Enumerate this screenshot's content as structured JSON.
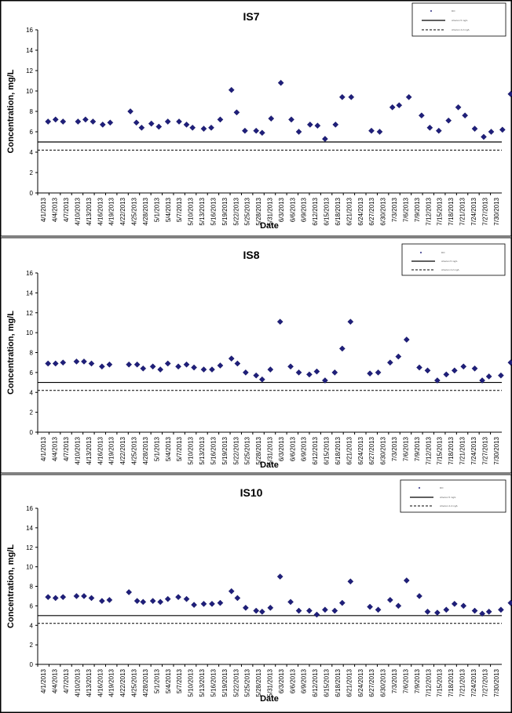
{
  "chart_data": [
    {
      "type": "scatter",
      "title": "IS7",
      "xlabel": "Date",
      "ylabel": "Concentration, mg/L",
      "ylim": [
        0,
        16
      ],
      "yticks": [
        "0",
        "2",
        "4",
        "6",
        "8",
        "10",
        "12",
        "14",
        "16"
      ],
      "categories": [
        "4/1/2013",
        "4/4/2013",
        "4/7/2013",
        "4/10/2013",
        "4/13/2013",
        "4/16/2013",
        "4/19/2013",
        "4/22/2013",
        "4/25/2013",
        "4/28/2013",
        "5/1/2013",
        "5/4/2013",
        "5/7/2013",
        "5/10/2013",
        "5/13/2013",
        "5/16/2013",
        "5/19/2013",
        "5/22/2013",
        "5/25/2013",
        "5/28/2013",
        "5/31/2013",
        "6/3/2013",
        "6/6/2013",
        "6/9/2013",
        "6/12/2013",
        "6/15/2013",
        "6/18/2013",
        "6/21/2013",
        "6/24/2013",
        "6/27/2013",
        "6/30/2013",
        "7/3/2013",
        "7/6/2013",
        "7/9/2013",
        "7/12/2013",
        "7/15/2013",
        "7/18/2013",
        "7/21/2013",
        "7/24/2013",
        "7/27/2013",
        "7/30/2013"
      ],
      "series": [
        {
          "values": [
            [
              0,
              7.0
            ],
            [
              1,
              7.2
            ],
            [
              2,
              7.0
            ],
            [
              4,
              7.0
            ],
            [
              5,
              7.2
            ],
            [
              6,
              7.0
            ],
            [
              7.3,
              6.7
            ],
            [
              8.3,
              6.9
            ],
            [
              11,
              8.0
            ],
            [
              11.8,
              6.9
            ],
            [
              12.5,
              6.4
            ],
            [
              13.8,
              6.8
            ],
            [
              14.8,
              6.5
            ],
            [
              16,
              7.0
            ],
            [
              17.5,
              7.0
            ],
            [
              18.5,
              6.7
            ],
            [
              19.3,
              6.4
            ],
            [
              20.8,
              6.3
            ],
            [
              21.8,
              6.4
            ],
            [
              23,
              7.2
            ],
            [
              24.5,
              10.1
            ],
            [
              25.2,
              7.9
            ],
            [
              26.3,
              6.1
            ],
            [
              27.8,
              6.1
            ],
            [
              28.6,
              5.9
            ],
            [
              29.8,
              7.3
            ],
            [
              31.1,
              10.8
            ],
            [
              32.5,
              7.2
            ],
            [
              33.5,
              6.0
            ],
            [
              35,
              6.7
            ],
            [
              36,
              6.6
            ],
            [
              37,
              5.3
            ],
            [
              38.4,
              6.7
            ],
            [
              39.3,
              9.4
            ],
            [
              40.5,
              9.4
            ],
            [
              43.2,
              6.1
            ],
            [
              44.3,
              6.0
            ],
            [
              46,
              8.4
            ],
            [
              46.9,
              8.6
            ],
            [
              48.2,
              9.4
            ],
            [
              49.9,
              7.6
            ],
            [
              51,
              6.4
            ],
            [
              52.2,
              6.1
            ],
            [
              53.5,
              7.1
            ],
            [
              54.8,
              8.4
            ],
            [
              55.7,
              7.6
            ],
            [
              57,
              6.3
            ],
            [
              58.2,
              5.5
            ],
            [
              59.2,
              6.0
            ],
            [
              60.7,
              6.2
            ],
            [
              61.8,
              9.7
            ]
          ]
        }
      ],
      "reference_lines": [
        5.0,
        4.2
      ],
      "legend": [
        "DO",
        "criterion 5 mg/L",
        "criterion 4.2 mg/L"
      ]
    },
    {
      "type": "scatter",
      "title": "IS8",
      "xlabel": "Date",
      "ylabel": "Concentration, mg/L",
      "ylim": [
        0,
        16
      ],
      "yticks": [
        "0",
        "2",
        "4",
        "6",
        "8",
        "10",
        "12",
        "14",
        "16"
      ],
      "categories": [
        "4/1/2013",
        "4/4/2013",
        "4/7/2013",
        "4/10/2013",
        "4/13/2013",
        "4/16/2013",
        "4/19/2013",
        "4/22/2013",
        "4/25/2013",
        "4/28/2013",
        "5/1/2013",
        "5/4/2013",
        "5/7/2013",
        "5/10/2013",
        "5/13/2013",
        "5/16/2013",
        "5/19/2013",
        "5/22/2013",
        "5/25/2013",
        "5/28/2013",
        "5/31/2013",
        "6/3/2013",
        "6/6/2013",
        "6/9/2013",
        "6/12/2013",
        "6/15/2013",
        "6/18/2013",
        "6/21/2013",
        "6/24/2013",
        "6/27/2013",
        "6/30/2013",
        "7/3/2013",
        "7/6/2013",
        "7/9/2013",
        "7/12/2013",
        "7/15/2013",
        "7/18/2013",
        "7/21/2013",
        "7/24/2013",
        "7/27/2013",
        "7/30/2013"
      ],
      "series": [
        {
          "values": [
            [
              0,
              6.9
            ],
            [
              1,
              6.9
            ],
            [
              2,
              7.0
            ],
            [
              3.8,
              7.1
            ],
            [
              4.8,
              7.1
            ],
            [
              5.8,
              6.9
            ],
            [
              7.2,
              6.6
            ],
            [
              8.2,
              6.8
            ],
            [
              10.8,
              6.8
            ],
            [
              11.9,
              6.8
            ],
            [
              12.7,
              6.4
            ],
            [
              14,
              6.6
            ],
            [
              15,
              6.3
            ],
            [
              16,
              6.9
            ],
            [
              17.4,
              6.6
            ],
            [
              18.5,
              6.8
            ],
            [
              19.5,
              6.5
            ],
            [
              20.8,
              6.3
            ],
            [
              21.9,
              6.3
            ],
            [
              23,
              6.7
            ],
            [
              24.5,
              7.4
            ],
            [
              25.3,
              6.9
            ],
            [
              26.4,
              6.0
            ],
            [
              27.8,
              5.7
            ],
            [
              28.6,
              5.3
            ],
            [
              29.7,
              6.3
            ],
            [
              31.0,
              11.1
            ],
            [
              32.4,
              6.6
            ],
            [
              33.5,
              6.0
            ],
            [
              34.9,
              5.8
            ],
            [
              35.9,
              6.1
            ],
            [
              37,
              5.2
            ],
            [
              38.3,
              6.0
            ],
            [
              39.3,
              8.4
            ],
            [
              40.4,
              11.1
            ],
            [
              43.0,
              5.9
            ],
            [
              44.1,
              6.0
            ],
            [
              45.7,
              7.0
            ],
            [
              46.8,
              7.6
            ],
            [
              47.9,
              9.3
            ],
            [
              49.6,
              6.5
            ],
            [
              50.7,
              6.2
            ],
            [
              52,
              5.2
            ],
            [
              53.2,
              5.8
            ],
            [
              54.3,
              6.2
            ],
            [
              55.5,
              6.6
            ],
            [
              57,
              6.4
            ],
            [
              58,
              5.2
            ],
            [
              58.9,
              5.6
            ],
            [
              60.5,
              5.7
            ],
            [
              61.8,
              7.0
            ]
          ]
        }
      ],
      "reference_lines": [
        5.0,
        4.2
      ],
      "legend": [
        "DO",
        "criterion 5 mg/L",
        "criterion 4.2 mg/L"
      ]
    },
    {
      "type": "scatter",
      "title": "IS10",
      "xlabel": "Date",
      "ylabel": "Concentration, mg/L",
      "ylim": [
        0,
        16
      ],
      "yticks": [
        "0",
        "2",
        "4",
        "6",
        "8",
        "10",
        "12",
        "14",
        "16"
      ],
      "categories": [
        "4/1/2013",
        "4/4/2013",
        "4/7/2013",
        "4/10/2013",
        "4/13/2013",
        "4/16/2013",
        "4/19/2013",
        "4/22/2013",
        "4/25/2013",
        "4/28/2013",
        "5/1/2013",
        "5/4/2013",
        "5/7/2013",
        "5/10/2013",
        "5/13/2013",
        "5/16/2013",
        "5/19/2013",
        "5/22/2013",
        "5/25/2013",
        "5/28/2013",
        "5/31/2013",
        "6/3/2013",
        "6/6/2013",
        "6/9/2013",
        "6/12/2013",
        "6/15/2013",
        "6/18/2013",
        "6/21/2013",
        "6/24/2013",
        "6/27/2013",
        "6/30/2013",
        "7/3/2013",
        "7/6/2013",
        "7/9/2013",
        "7/12/2013",
        "7/15/2013",
        "7/18/2013",
        "7/21/2013",
        "7/24/2013",
        "7/27/2013",
        "7/30/2013"
      ],
      "series": [
        {
          "values": [
            [
              0,
              6.9
            ],
            [
              1,
              6.8
            ],
            [
              2,
              6.9
            ],
            [
              3.8,
              7.0
            ],
            [
              4.8,
              7.0
            ],
            [
              5.8,
              6.8
            ],
            [
              7.2,
              6.5
            ],
            [
              8.2,
              6.6
            ],
            [
              10.8,
              7.4
            ],
            [
              11.9,
              6.5
            ],
            [
              12.7,
              6.4
            ],
            [
              14,
              6.5
            ],
            [
              15,
              6.4
            ],
            [
              16,
              6.7
            ],
            [
              17.4,
              6.9
            ],
            [
              18.5,
              6.7
            ],
            [
              19.5,
              6.1
            ],
            [
              20.8,
              6.2
            ],
            [
              21.9,
              6.2
            ],
            [
              23,
              6.3
            ],
            [
              24.5,
              7.5
            ],
            [
              25.3,
              6.8
            ],
            [
              26.4,
              5.8
            ],
            [
              27.8,
              5.5
            ],
            [
              28.6,
              5.4
            ],
            [
              29.7,
              5.8
            ],
            [
              31.0,
              9.0
            ],
            [
              32.4,
              6.4
            ],
            [
              33.5,
              5.5
            ],
            [
              34.9,
              5.5
            ],
            [
              35.9,
              5.1
            ],
            [
              37,
              5.6
            ],
            [
              38.3,
              5.5
            ],
            [
              39.3,
              6.3
            ],
            [
              40.4,
              8.5
            ],
            [
              43.0,
              5.9
            ],
            [
              44.1,
              5.6
            ],
            [
              45.7,
              6.6
            ],
            [
              46.8,
              6.0
            ],
            [
              47.9,
              8.6
            ],
            [
              49.6,
              7.0
            ],
            [
              50.7,
              5.4
            ],
            [
              52,
              5.3
            ],
            [
              53.2,
              5.6
            ],
            [
              54.3,
              6.2
            ],
            [
              55.5,
              6.0
            ],
            [
              57,
              5.5
            ],
            [
              58,
              5.2
            ],
            [
              58.9,
              5.4
            ],
            [
              60.5,
              5.6
            ],
            [
              61.8,
              6.3
            ]
          ]
        }
      ],
      "reference_lines": [
        5.0,
        4.2
      ],
      "legend": [
        "DO",
        "criterion 5 mg/L",
        "criterion 4.2 mg/L"
      ]
    }
  ]
}
